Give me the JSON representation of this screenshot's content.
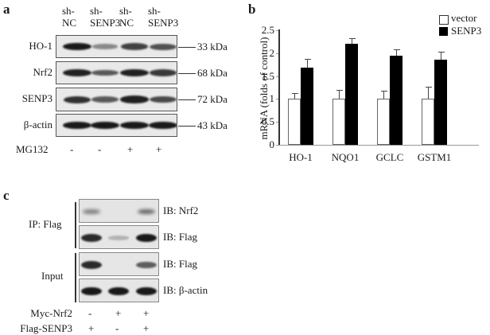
{
  "panel_a": {
    "letter": "a",
    "lanes": [
      {
        "line1": "sh-",
        "line2": "NC"
      },
      {
        "line1": "sh-",
        "line2": "SENP3"
      },
      {
        "line1": "sh-",
        "line2": "NC"
      },
      {
        "line1": "sh-",
        "line2": "SENP3"
      }
    ],
    "rows": [
      {
        "label": "HO-1",
        "size": "33 kDa",
        "intensities": [
          0.95,
          0.25,
          0.7,
          0.6
        ]
      },
      {
        "label": "Nrf2",
        "size": "68 kDa",
        "intensities": [
          0.9,
          0.55,
          0.9,
          0.75
        ]
      },
      {
        "label": "SENP3",
        "size": "72 kDa",
        "intensities": [
          0.8,
          0.55,
          0.9,
          0.65
        ]
      },
      {
        "label": "β-actin",
        "size": "43 kDa",
        "intensities": [
          0.95,
          0.95,
          0.95,
          0.95
        ]
      }
    ],
    "treatment": {
      "label": "MG132",
      "values": [
        "-",
        "-",
        "+",
        "+"
      ]
    }
  },
  "panel_b": {
    "letter": "b",
    "legend": [
      {
        "label": "vector",
        "color": "#ffffff"
      },
      {
        "label": "SENP3",
        "color": "#000000"
      }
    ]
  },
  "chart_data": {
    "type": "bar",
    "title": "",
    "xlabel": "",
    "ylabel": "mRNA (folds of control)",
    "ylim": [
      0,
      2.5
    ],
    "yticks": [
      "0",
      "0.5",
      "1",
      "1.5",
      "2",
      "2.5"
    ],
    "categories": [
      "HO-1",
      "NQO1",
      "GCLC",
      "GSTM1"
    ],
    "series": [
      {
        "name": "vector",
        "values": [
          1.0,
          1.0,
          1.0,
          1.0
        ],
        "errors": [
          0.12,
          0.2,
          0.18,
          0.27
        ],
        "color": "#ffffff"
      },
      {
        "name": "SENP3",
        "values": [
          1.69,
          2.2,
          1.94,
          1.85
        ],
        "errors": [
          0.18,
          0.12,
          0.14,
          0.18
        ],
        "color": "#000000"
      }
    ],
    "legend_position": "top-right",
    "grid": false
  },
  "panel_c": {
    "letter": "c",
    "groups": [
      {
        "label": "IP: Flag"
      },
      {
        "label": "Input"
      }
    ],
    "rows": [
      {
        "label": "IB: Nrf2",
        "intensities": [
          0.35,
          0.0,
          0.5
        ],
        "faint": true
      },
      {
        "label": "IB: Flag",
        "intensities": [
          0.85,
          0.05,
          0.95
        ],
        "faint": false
      },
      {
        "label": "IB: Flag",
        "intensities": [
          0.85,
          0.0,
          0.55
        ],
        "faint": false
      },
      {
        "label": "IB: β-actin",
        "intensities": [
          0.95,
          0.95,
          0.95
        ],
        "faint": false
      }
    ],
    "treatments": [
      {
        "label": "Myc-Nrf2",
        "values": [
          "-",
          "+",
          "+"
        ]
      },
      {
        "label": "Flag-SENP3",
        "values": [
          "+",
          "-",
          "+"
        ]
      }
    ]
  }
}
